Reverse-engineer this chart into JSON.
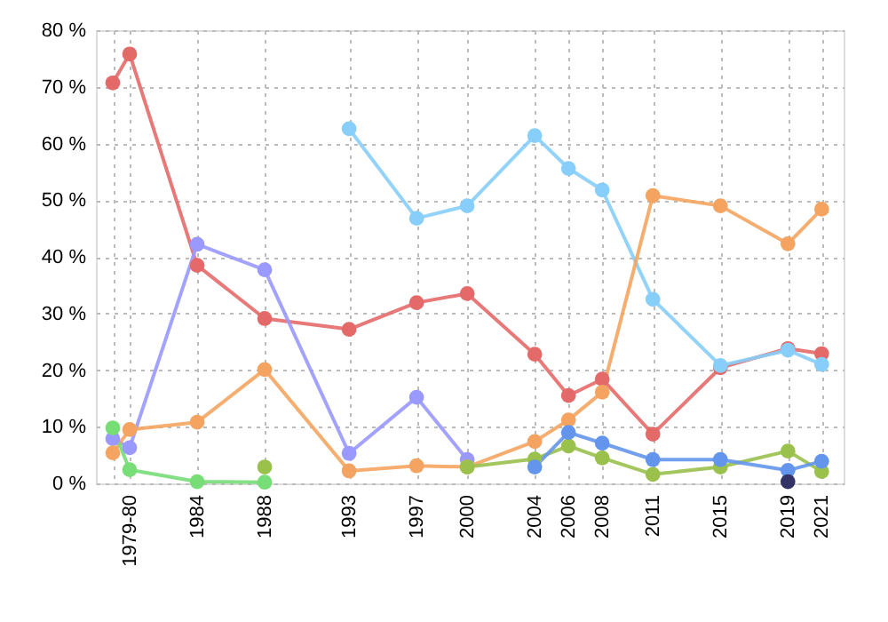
{
  "chart_data": {
    "type": "line",
    "marker": "circle",
    "line_style": "solid",
    "grid": true,
    "xlim": [
      1978,
      2022.3
    ],
    "xticks": [
      {
        "value": 1979,
        "label": null
      },
      {
        "value": 1980,
        "label": "1979-80"
      },
      1984,
      1988,
      1993,
      1997,
      2000,
      2004,
      2006,
      2008,
      2011,
      2015,
      2019,
      2021
    ],
    "ylim": [
      0,
      80
    ],
    "yticks": [
      {
        "value": 0,
        "label": "0 %"
      },
      {
        "value": 10,
        "label": "10 %"
      },
      {
        "value": 20,
        "label": "20 %"
      },
      {
        "value": 30,
        "label": "30 %"
      },
      {
        "value": 40,
        "label": "40 %"
      },
      {
        "value": 50,
        "label": "50 %"
      },
      {
        "value": 60,
        "label": "60 %"
      },
      {
        "value": 70,
        "label": "70 %"
      },
      {
        "value": 80,
        "label": "80 %"
      }
    ],
    "series": [
      {
        "color": "#e46a6a",
        "x": [
          1979,
          1980,
          1984,
          1988,
          1993,
          1997,
          2000,
          2004,
          2006,
          2008,
          2011,
          2015,
          2019,
          2021
        ],
        "values": [
          70.7,
          75.8,
          38.5,
          29.1,
          27.2,
          31.9,
          33.5,
          22.8,
          15.5,
          18.4,
          8.7,
          20.4,
          23.8,
          22.9
        ]
      },
      {
        "color": "#87cefa",
        "x": [
          1993,
          1997,
          2000,
          2004,
          2006,
          2008,
          2011,
          2015,
          2019,
          2021
        ],
        "values": [
          62.6,
          46.8,
          49,
          61.4,
          55.6,
          51.8,
          32.5,
          20.8,
          23.5,
          21
        ]
      },
      {
        "color": "#9999ff",
        "x": [
          1979,
          1980,
          1984,
          1988,
          1993,
          1997,
          2000
        ],
        "values": [
          7.9,
          6.3,
          42.2,
          37.7,
          5.3,
          15.2,
          4.2
        ]
      },
      {
        "color": "#f4a460",
        "x": [
          1979,
          1980,
          1984,
          1988,
          1993,
          1997,
          2000,
          2004,
          2006,
          2008,
          2011,
          2015,
          2019,
          2021
        ],
        "values": [
          5.4,
          9.5,
          10.8,
          20.1,
          2.2,
          3.1,
          2.9,
          7.4,
          11.2,
          16.1,
          50.8,
          49,
          42.3,
          48.4
        ]
      },
      {
        "color": "#77dd77",
        "x": [
          1979,
          1980,
          1984,
          1988
        ],
        "values": [
          9.8,
          2.4,
          0.3,
          0.2
        ]
      },
      {
        "color": "#99c14c",
        "x": [
          1988,
          1993,
          1997,
          2000,
          2004,
          2006,
          2008,
          2011,
          2015,
          2019,
          2021
        ],
        "values": [
          2.9,
          null,
          null,
          2.9,
          4.3,
          6.6,
          4.5,
          1.6,
          2.9,
          5.7,
          2.1
        ]
      },
      {
        "color": "#6495ed",
        "x": [
          2004,
          2006,
          2008,
          2011,
          2015,
          2019,
          2021
        ],
        "values": [
          2.9,
          9.0,
          7.1,
          4.2,
          4.2,
          2.3,
          3.9
        ]
      },
      {
        "color": "#333366",
        "x": [
          2019
        ],
        "values": [
          0.3
        ]
      }
    ]
  }
}
